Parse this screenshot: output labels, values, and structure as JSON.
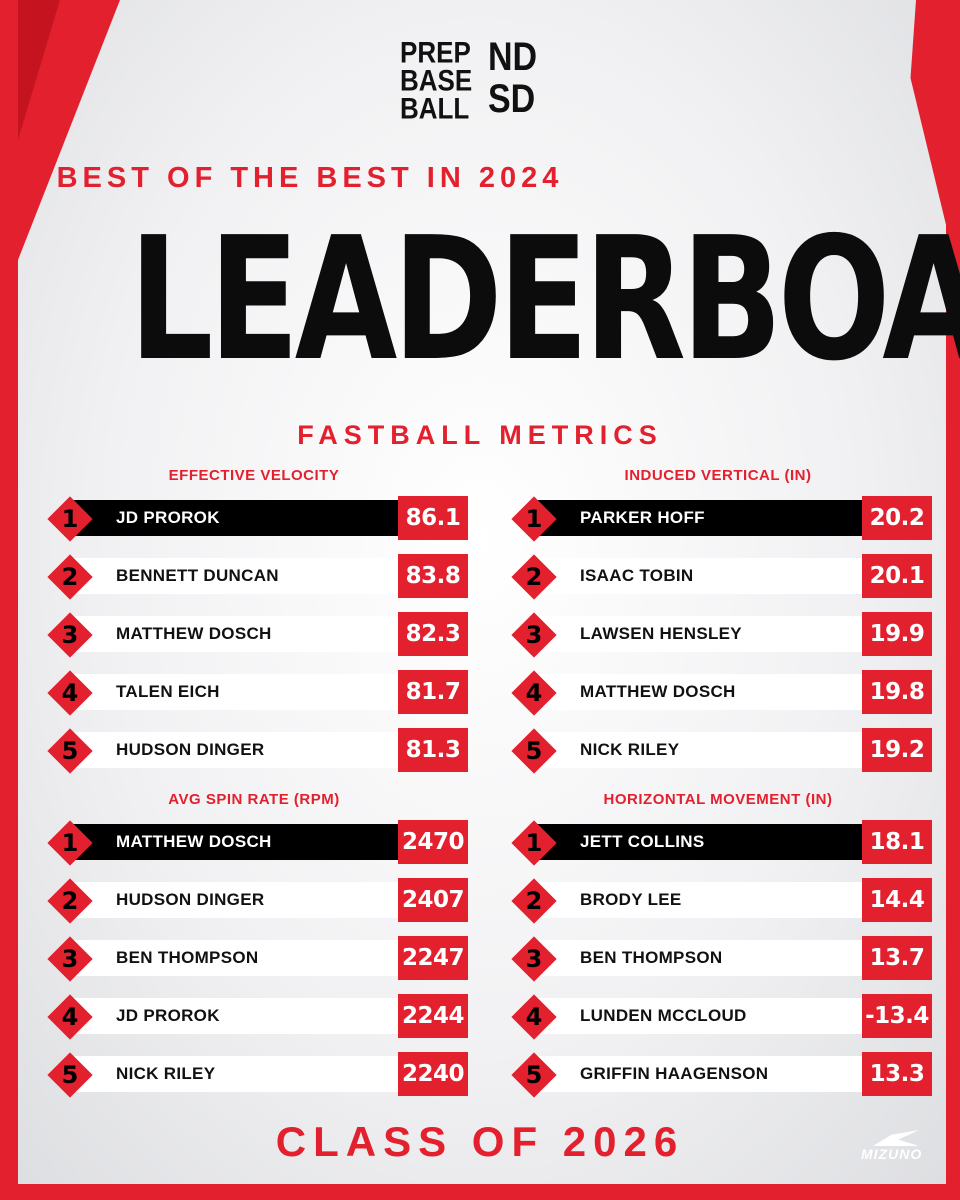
{
  "logo": {
    "lines": [
      "PREP",
      "BASE",
      "BALL"
    ],
    "badge_top": "ND",
    "badge_bottom": "SD"
  },
  "kicker": "BEST OF THE BEST IN 2024",
  "title": "LEADERBOARD",
  "subtitle": "FASTBALL METRICS",
  "sections": [
    {
      "title": "EFFECTIVE VELOCITY",
      "rows": [
        {
          "rank": "1",
          "name": "JD PROROK",
          "value": "86.1"
        },
        {
          "rank": "2",
          "name": "BENNETT DUNCAN",
          "value": "83.8"
        },
        {
          "rank": "3",
          "name": "MATTHEW DOSCH",
          "value": "82.3"
        },
        {
          "rank": "4",
          "name": "TALEN EICH",
          "value": "81.7"
        },
        {
          "rank": "5",
          "name": "HUDSON DINGER",
          "value": "81.3"
        }
      ]
    },
    {
      "title": "INDUCED VERTICAL (IN)",
      "rows": [
        {
          "rank": "1",
          "name": "PARKER HOFF",
          "value": "20.2"
        },
        {
          "rank": "2",
          "name": "ISAAC TOBIN",
          "value": "20.1"
        },
        {
          "rank": "3",
          "name": "LAWSEN HENSLEY",
          "value": "19.9"
        },
        {
          "rank": "4",
          "name": "MATTHEW DOSCH",
          "value": "19.8"
        },
        {
          "rank": "5",
          "name": "NICK RILEY",
          "value": "19.2"
        }
      ]
    },
    {
      "title": "AVG SPIN RATE (RPM)",
      "rows": [
        {
          "rank": "1",
          "name": "MATTHEW DOSCH",
          "value": "2470"
        },
        {
          "rank": "2",
          "name": "HUDSON DINGER",
          "value": "2407"
        },
        {
          "rank": "3",
          "name": "BEN THOMPSON",
          "value": "2247"
        },
        {
          "rank": "4",
          "name": "JD PROROK",
          "value": "2244"
        },
        {
          "rank": "5",
          "name": "NICK RILEY",
          "value": "2240"
        }
      ]
    },
    {
      "title": "HORIZONTAL MOVEMENT (IN)",
      "rows": [
        {
          "rank": "1",
          "name": "JETT COLLINS",
          "value": "18.1"
        },
        {
          "rank": "2",
          "name": "BRODY LEE",
          "value": "14.4"
        },
        {
          "rank": "3",
          "name": "BEN THOMPSON",
          "value": "13.7"
        },
        {
          "rank": "4",
          "name": "LUNDEN MCCLOUD",
          "value": "-13.4"
        },
        {
          "rank": "5",
          "name": "GRIFFIN HAAGENSON",
          "value": "13.3"
        }
      ]
    }
  ],
  "footer": "CLASS OF 2026",
  "sponsor": "MIZUNO",
  "colors": {
    "accent": "#e3202e",
    "dark": "#000000",
    "background": "#f1f1f3"
  }
}
